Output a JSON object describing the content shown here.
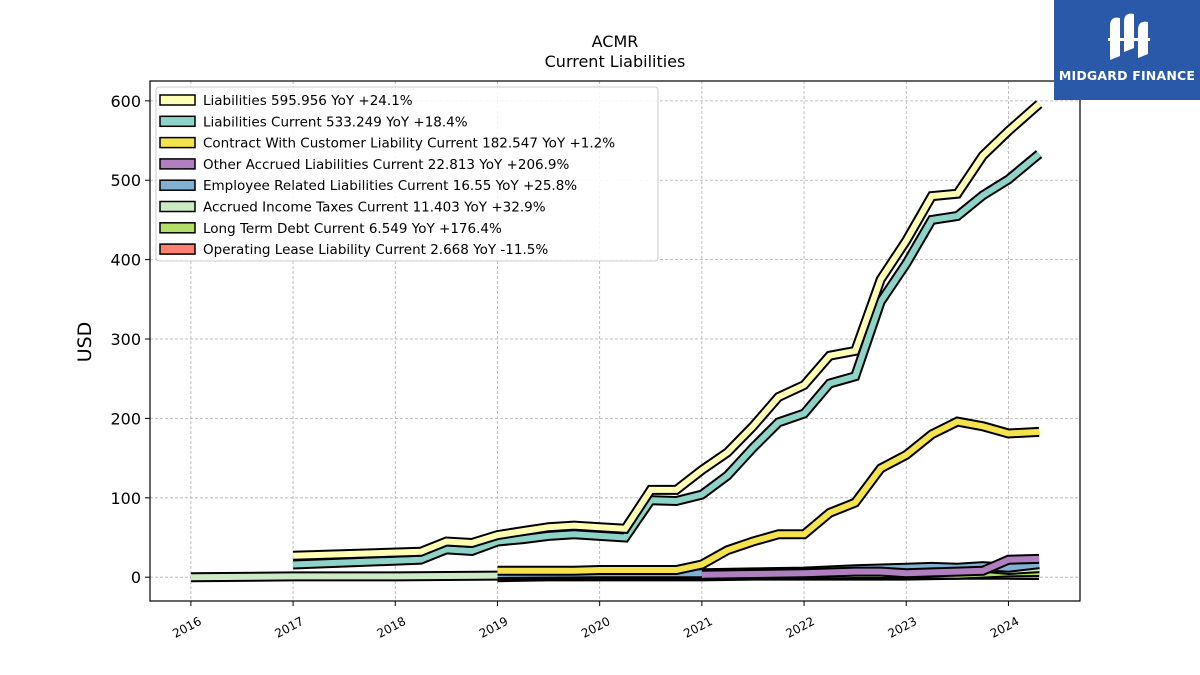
{
  "logo": {
    "brand": "MIDGARD FINANCE",
    "icon": "midgard-logo-icon"
  },
  "chart_data": {
    "type": "line",
    "title": "ACMR",
    "subtitle": "Current  Liabilities",
    "xlabel": "",
    "ylabel": "USD",
    "xlim": [
      2015.6,
      2024.7
    ],
    "ylim": [
      -30,
      625
    ],
    "yticks": [
      0,
      100,
      200,
      300,
      400,
      500,
      600
    ],
    "xticks": [
      "2016",
      "2017",
      "2018",
      "2019",
      "2020",
      "2021",
      "2022",
      "2023",
      "2024"
    ],
    "grid": true,
    "legend_position": "top-left",
    "series": [
      {
        "name": "Liabilities",
        "legend": "Liabilities  595.956 YoY +24.1%",
        "color": "#ffffb3",
        "x": [
          2017.0,
          2018.25,
          2018.5,
          2018.75,
          2019.0,
          2019.25,
          2019.5,
          2019.75,
          2020.0,
          2020.25,
          2020.5,
          2020.75,
          2021.0,
          2021.25,
          2021.5,
          2021.75,
          2022.0,
          2022.25,
          2022.5,
          2022.75,
          2023.0,
          2023.25,
          2023.5,
          2023.75,
          2024.0,
          2024.3
        ],
        "y": [
          27,
          32,
          45,
          43,
          53,
          58,
          63,
          65,
          63,
          61,
          110,
          110,
          135,
          157,
          190,
          227,
          242,
          279,
          285,
          375,
          424,
          480,
          483,
          531,
          562,
          596
        ]
      },
      {
        "name": "Liabilities Current",
        "legend": "Liabilities Current  533.249 YoY +18.4%",
        "color": "#8dd3c7",
        "x": [
          2017.0,
          2018.25,
          2018.5,
          2018.75,
          2019.0,
          2019.25,
          2019.5,
          2019.75,
          2020.0,
          2020.25,
          2020.5,
          2020.75,
          2021.0,
          2021.25,
          2021.5,
          2021.75,
          2022.0,
          2022.25,
          2022.5,
          2022.75,
          2023.0,
          2023.25,
          2023.5,
          2023.75,
          2024.0,
          2024.3
        ],
        "y": [
          16,
          22,
          35,
          33,
          45,
          48,
          52,
          54,
          52,
          50,
          97,
          96,
          104,
          128,
          163,
          195,
          206,
          244,
          253,
          347,
          395,
          450,
          455,
          481,
          501,
          533
        ]
      },
      {
        "name": "Contract With Customer Liability Current",
        "legend": "Contract With Customer Liability Current  182.547 YoY +1.2%",
        "color": "#f4e34d",
        "x": [
          2019.0,
          2019.25,
          2019.5,
          2019.75,
          2020.0,
          2020.25,
          2020.5,
          2020.75,
          2021.0,
          2021.25,
          2021.5,
          2021.75,
          2022.0,
          2022.25,
          2022.5,
          2022.75,
          2023.0,
          2023.25,
          2023.5,
          2023.75,
          2024.0,
          2024.3
        ],
        "y": [
          8,
          8,
          8,
          8,
          9,
          9,
          9,
          9,
          16,
          34,
          45,
          54,
          54,
          81,
          94,
          137,
          154,
          180,
          196,
          190,
          181,
          183
        ]
      },
      {
        "name": "Other Accrued Liabilities Current",
        "legend": "Other Accrued Liabilities Current  22.813 YoY +206.9%",
        "color": "#b07fc0",
        "x": [
          2021.0,
          2021.5,
          2022.0,
          2022.5,
          2022.75,
          2023.0,
          2023.25,
          2023.5,
          2023.75,
          2024.0,
          2024.3
        ],
        "y": [
          3,
          4,
          5,
          7,
          7,
          5,
          6,
          7,
          8,
          22,
          23
        ]
      },
      {
        "name": "Employee Related Liabilities Current",
        "legend": "Employee Related Liabilities Current  16.55 YoY +25.8%",
        "color": "#80b1d3",
        "x": [
          2019.0,
          2020.0,
          2021.0,
          2021.5,
          2022.0,
          2022.5,
          2022.75,
          2023.0,
          2023.25,
          2023.5,
          2023.75,
          2024.0,
          2024.3
        ],
        "y": [
          4,
          5,
          5,
          6,
          7,
          10,
          11,
          12,
          13,
          12,
          14,
          12,
          16.5
        ]
      },
      {
        "name": "Accrued Income Taxes Current",
        "legend": "Accrued Income Taxes Current  11.403 YoY +32.9%",
        "color": "#ccebc5",
        "x": [
          2016.0,
          2017.0,
          2018.0,
          2019.0,
          2020.0,
          2021.0,
          2021.5,
          2022.0,
          2022.5,
          2022.75,
          2023.0,
          2023.25,
          2023.5,
          2023.75,
          2024.0,
          2024.3
        ],
        "y": [
          0,
          1,
          1,
          2,
          3,
          3,
          4,
          5,
          9,
          10,
          5,
          9,
          10,
          12,
          9,
          11.4
        ]
      },
      {
        "name": "Long Term Debt Current",
        "legend": "Long Term Debt Current  6.549 YoY +176.4%",
        "color": "#b3de69",
        "x": [
          2019.0,
          2020.0,
          2021.0,
          2021.5,
          2022.0,
          2022.5,
          2023.0,
          2023.5,
          2024.0,
          2024.3
        ],
        "y": [
          2,
          3,
          3,
          3,
          3,
          4,
          4,
          3,
          6,
          6.5
        ]
      },
      {
        "name": "Operating Lease Liability Current",
        "legend": "Operating Lease Liability Current  2.668 YoY -11.5%",
        "color": "#fb8072",
        "x": [
          2019.0,
          2019.5,
          2020.0,
          2020.5,
          2021.0,
          2021.5,
          2022.0,
          2022.5,
          2023.0,
          2023.5,
          2024.0,
          2024.3
        ],
        "y": [
          0,
          1,
          1,
          1,
          1,
          2,
          2,
          2,
          2,
          3,
          3,
          2.7
        ]
      }
    ]
  }
}
